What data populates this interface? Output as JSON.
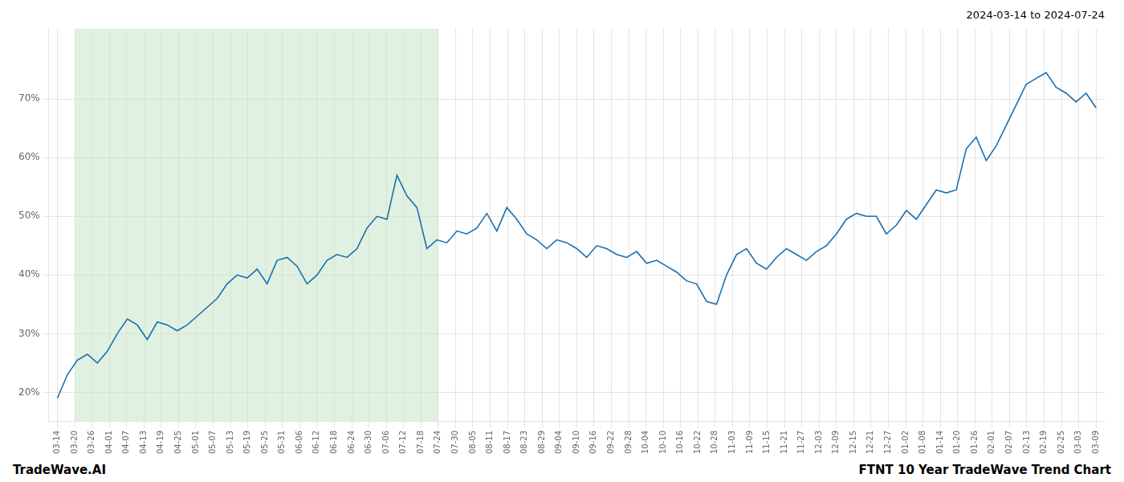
{
  "chart_data": {
    "type": "line",
    "title": "2024-03-14 to 2024-07-24",
    "annotations": [
      "TradeWave.AI",
      "FTNT 10 Year TradeWave Trend Chart"
    ],
    "color": "#1a6faf",
    "grid": true,
    "xlim": [
      -0.5,
      60.5
    ],
    "xticks": [
      {
        "value": 0,
        "label": "03-14"
      },
      {
        "value": 1,
        "label": "03-20"
      },
      {
        "value": 2,
        "label": "03-26"
      },
      {
        "value": 3,
        "label": "04-01"
      },
      {
        "value": 4,
        "label": "04-07"
      },
      {
        "value": 5,
        "label": "04-13"
      },
      {
        "value": 6,
        "label": "04-19"
      },
      {
        "value": 7,
        "label": "04-25"
      },
      {
        "value": 8,
        "label": "05-01"
      },
      {
        "value": 9,
        "label": "05-07"
      },
      {
        "value": 10,
        "label": "05-13"
      },
      {
        "value": 11,
        "label": "05-19"
      },
      {
        "value": 12,
        "label": "05-25"
      },
      {
        "value": 13,
        "label": "05-31"
      },
      {
        "value": 14,
        "label": "06-06"
      },
      {
        "value": 15,
        "label": "06-12"
      },
      {
        "value": 16,
        "label": "06-18"
      },
      {
        "value": 17,
        "label": "06-24"
      },
      {
        "value": 18,
        "label": "06-30"
      },
      {
        "value": 19,
        "label": "07-06"
      },
      {
        "value": 20,
        "label": "07-12"
      },
      {
        "value": 21,
        "label": "07-18"
      },
      {
        "value": 22,
        "label": "07-24"
      },
      {
        "value": 23,
        "label": "07-30"
      },
      {
        "value": 24,
        "label": "08-05"
      },
      {
        "value": 25,
        "label": "08-11"
      },
      {
        "value": 26,
        "label": "08-17"
      },
      {
        "value": 27,
        "label": "08-23"
      },
      {
        "value": 28,
        "label": "08-29"
      },
      {
        "value": 29,
        "label": "09-04"
      },
      {
        "value": 30,
        "label": "09-10"
      },
      {
        "value": 31,
        "label": "09-16"
      },
      {
        "value": 32,
        "label": "09-22"
      },
      {
        "value": 33,
        "label": "09-28"
      },
      {
        "value": 34,
        "label": "10-04"
      },
      {
        "value": 35,
        "label": "10-10"
      },
      {
        "value": 36,
        "label": "10-16"
      },
      {
        "value": 37,
        "label": "10-22"
      },
      {
        "value": 38,
        "label": "10-28"
      },
      {
        "value": 39,
        "label": "11-03"
      },
      {
        "value": 40,
        "label": "11-09"
      },
      {
        "value": 41,
        "label": "11-15"
      },
      {
        "value": 42,
        "label": "11-21"
      },
      {
        "value": 43,
        "label": "11-27"
      },
      {
        "value": 44,
        "label": "12-03"
      },
      {
        "value": 45,
        "label": "12-09"
      },
      {
        "value": 46,
        "label": "12-15"
      },
      {
        "value": 47,
        "label": "12-21"
      },
      {
        "value": 48,
        "label": "12-27"
      },
      {
        "value": 49,
        "label": "01-02"
      },
      {
        "value": 50,
        "label": "01-08"
      },
      {
        "value": 51,
        "label": "01-14"
      },
      {
        "value": 52,
        "label": "01-20"
      },
      {
        "value": 53,
        "label": "01-26"
      },
      {
        "value": 54,
        "label": "02-01"
      },
      {
        "value": 55,
        "label": "02-07"
      },
      {
        "value": 56,
        "label": "02-13"
      },
      {
        "value": 57,
        "label": "02-19"
      },
      {
        "value": 58,
        "label": "02-25"
      },
      {
        "value": 59,
        "label": "03-03"
      },
      {
        "value": 60,
        "label": "03-09"
      }
    ],
    "ylim": [
      15,
      82
    ],
    "yticks": [
      {
        "value": 20,
        "label": "20%"
      },
      {
        "value": 30,
        "label": "30%"
      },
      {
        "value": 40,
        "label": "40%"
      },
      {
        "value": 50,
        "label": "50%"
      },
      {
        "value": 60,
        "label": "60%"
      },
      {
        "value": 70,
        "label": "70%"
      }
    ],
    "shade": {
      "x": [
        1,
        22
      ],
      "color": "#c8e6c8"
    },
    "x": [
      0,
      0.5769,
      1.1538,
      1.7308,
      2.3077,
      2.8846,
      3.4615,
      4.0385,
      4.6154,
      5.1923,
      5.7692,
      6.3462,
      6.9231,
      7.5,
      8.0769,
      8.6538,
      9.2308,
      9.8077,
      10.3846,
      10.9615,
      11.5385,
      12.1154,
      12.6923,
      13.2692,
      13.8462,
      14.4231,
      15,
      15.5769,
      16.1538,
      16.7308,
      17.3077,
      17.8846,
      18.4615,
      19.0385,
      19.6154,
      20.1923,
      20.7692,
      21.3462,
      21.9231,
      22.5,
      23.0769,
      23.6538,
      24.2308,
      24.8077,
      25.3846,
      25.9615,
      26.5385,
      27.1154,
      27.6923,
      28.2692,
      28.8462,
      29.4231,
      30,
      30.5769,
      31.1538,
      31.7308,
      32.3077,
      32.8846,
      33.4615,
      34.0385,
      34.6154,
      35.1923,
      35.7692,
      36.3462,
      36.9231,
      37.5,
      38.0769,
      38.6538,
      39.2308,
      39.8077,
      40.3846,
      40.9615,
      41.5385,
      42.1154,
      42.6923,
      43.2692,
      43.8462,
      44.4231,
      45,
      45.5769,
      46.1538,
      46.7308,
      47.3077,
      47.8846,
      48.4615,
      49.0385,
      49.6154,
      50.1923,
      50.7692,
      51.3462,
      51.9231,
      52.5,
      53.0769,
      53.6538,
      54.2308,
      54.8077,
      55.3846,
      55.9615,
      56.5385,
      57.1154,
      57.6923,
      58.2692,
      58.8462,
      59.4231,
      60
    ],
    "values": [
      19.0,
      23.0,
      25.5,
      26.5,
      25.0,
      27.0,
      30.0,
      32.5,
      31.5,
      29.0,
      32.0,
      31.5,
      30.5,
      31.5,
      33.0,
      34.5,
      36.0,
      38.5,
      40.0,
      39.5,
      41.0,
      38.5,
      42.5,
      43.0,
      41.5,
      38.5,
      40.0,
      42.5,
      43.5,
      43.0,
      44.5,
      48.0,
      50.0,
      49.5,
      57.0,
      53.5,
      51.5,
      44.5,
      46.0,
      45.5,
      47.5,
      47.0,
      48.0,
      50.5,
      47.5,
      51.5,
      49.5,
      47.0,
      46.0,
      44.5,
      46.0,
      45.5,
      44.5,
      43.0,
      45.0,
      44.5,
      43.5,
      43.0,
      44.0,
      42.0,
      42.5,
      41.5,
      40.5,
      39.0,
      38.5,
      35.5,
      35.0,
      40.0,
      43.5,
      44.5,
      42.0,
      41.0,
      43.0,
      44.5,
      43.5,
      42.5,
      44.0,
      45.0,
      47.0,
      49.5,
      50.5,
      50.0,
      50.0,
      47.0,
      48.5,
      51.0,
      49.5,
      52.0,
      54.5,
      54.0,
      54.5,
      61.5,
      63.5,
      59.5,
      62.0,
      65.5,
      69.0,
      72.5,
      73.5,
      74.5,
      72.0,
      71.0,
      69.5,
      71.0,
      68.5
    ]
  }
}
